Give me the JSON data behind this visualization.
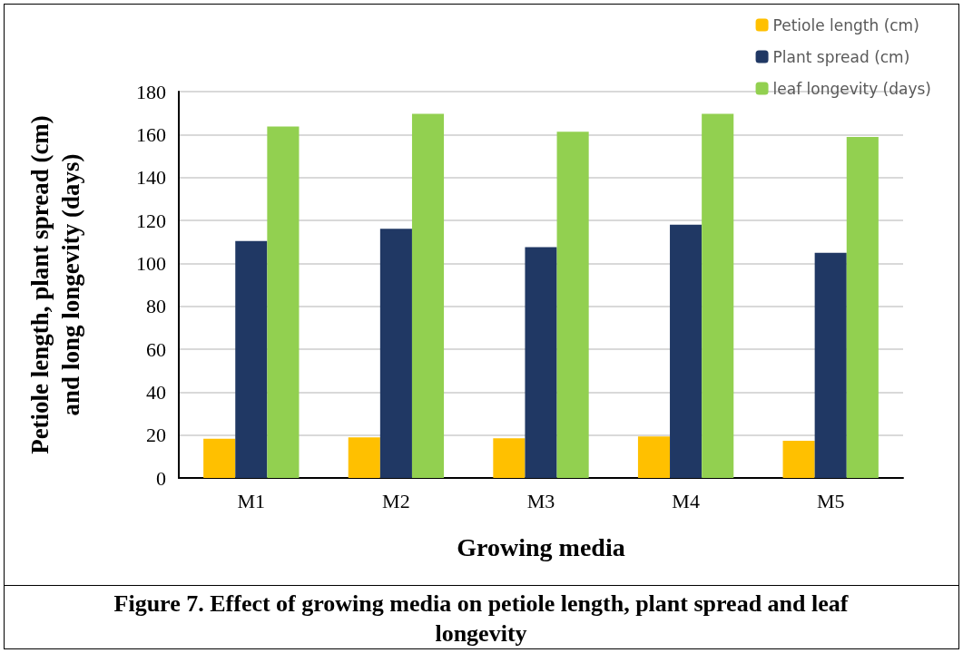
{
  "chart_data": {
    "type": "bar",
    "xlabel": "Growing media",
    "ylabel": "Petiole length, plant spread (cm) and long longevity (days)",
    "categories": [
      "M1",
      "M2",
      "M3",
      "M4",
      "M5"
    ],
    "series": [
      {
        "name": "Petiole length (cm)",
        "color": "#ffc000",
        "values": [
          18.3,
          18.9,
          18.5,
          19.3,
          17.3
        ]
      },
      {
        "name": "Plant spread (cm)",
        "color": "#203864",
        "values": [
          110.4,
          116.1,
          107.5,
          118.0,
          104.9
        ]
      },
      {
        "name": "leaf longevity (days)",
        "color": "#92d050",
        "values": [
          163.7,
          169.7,
          161.3,
          169.7,
          158.9
        ]
      }
    ],
    "ylim": [
      0,
      180
    ],
    "yticks": [
      0,
      20,
      40,
      60,
      80,
      100,
      120,
      140,
      160,
      180
    ],
    "grid": "y",
    "legend": "top right",
    "annotations": [
      "Figure 7. Effect of growing media on petiole length, plant spread and leaf longevity"
    ]
  }
}
